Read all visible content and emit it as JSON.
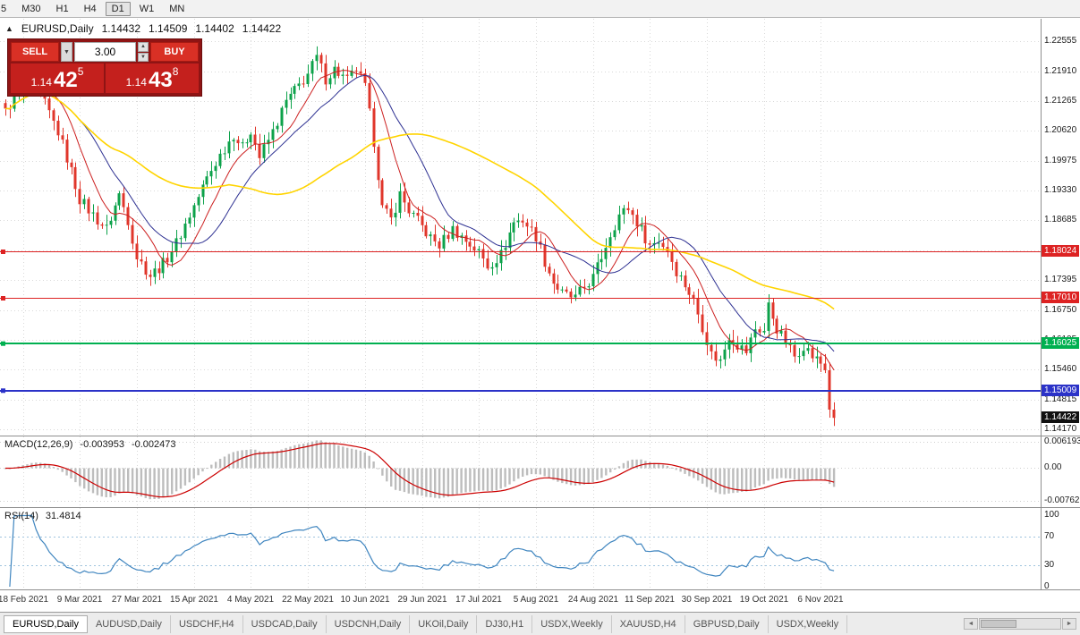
{
  "toolbar": {
    "timeframes": [
      {
        "label": "5"
      },
      {
        "label": "M30"
      },
      {
        "label": "H1"
      },
      {
        "label": "H4"
      },
      {
        "label": "D1"
      },
      {
        "label": "W1"
      },
      {
        "label": "MN"
      }
    ],
    "active_timeframe": "D1"
  },
  "header": {
    "collapse_icon": "▲",
    "title": "EURUSD,Daily",
    "open": "1.14432",
    "high": "1.14509",
    "low": "1.14402",
    "close": "1.14422"
  },
  "one_click": {
    "sell_label": "SELL",
    "buy_label": "BUY",
    "volume": "3.00",
    "volume_dropdown_icon": "▼",
    "spin_up_icon": "▲",
    "spin_down_icon": "▼",
    "sell_price": {
      "prefix": "1.14",
      "big": "42",
      "sup": "5"
    },
    "buy_price": {
      "prefix": "1.14",
      "big": "43",
      "sup": "8"
    },
    "colors": {
      "panel": "#8f1414",
      "button": "#d93025",
      "price_box": "#c4201d"
    }
  },
  "chart_data": {
    "type": "candlestick",
    "title": "EURUSD,Daily",
    "grid_color": "#d9d9d9",
    "price_axis": {
      "visible_min": 1.1404,
      "visible_max": 1.2304,
      "tick_labels": [
        "1.22555",
        "1.21910",
        "1.21265",
        "1.20620",
        "1.19975",
        "1.19330",
        "1.18685",
        "1.18040",
        "1.17395",
        "1.16750",
        "1.16105",
        "1.15460",
        "1.14815",
        "1.14170"
      ]
    },
    "x_axis": {
      "date_labels": [
        "18 Feb 2021",
        "9 Mar 2021",
        "27 Mar 2021",
        "15 Apr 2021",
        "4 May 2021",
        "22 May 2021",
        "10 Jun 2021",
        "29 Jun 2021",
        "17 Jul 2021",
        "5 Aug 2021",
        "24 Aug 2021",
        "11 Sep 2021",
        "30 Sep 2021",
        "19 Oct 2021",
        "6 Nov 2021"
      ],
      "tick_candle_indices": [
        4,
        17,
        30,
        43,
        56,
        69,
        82,
        95,
        108,
        121,
        134,
        147,
        160,
        173,
        186
      ]
    },
    "candles": {
      "count": 190,
      "up_color": "#0ca24a",
      "down_color": "#e0362b",
      "close_waypoints": [
        [
          0,
          1.211
        ],
        [
          3,
          1.214
        ],
        [
          6,
          1.2165
        ],
        [
          9,
          1.212
        ],
        [
          12,
          1.206
        ],
        [
          15,
          1.1975
        ],
        [
          17,
          1.1915
        ],
        [
          20,
          1.188
        ],
        [
          23,
          1.185
        ],
        [
          26,
          1.1925
        ],
        [
          28,
          1.187
        ],
        [
          30,
          1.179
        ],
        [
          33,
          1.175
        ],
        [
          36,
          1.1775
        ],
        [
          39,
          1.182
        ],
        [
          43,
          1.19
        ],
        [
          46,
          1.196
        ],
        [
          49,
          1.201
        ],
        [
          52,
          1.2055
        ],
        [
          54,
          1.2025
        ],
        [
          56,
          1.2065
        ],
        [
          58,
          1.2005
        ],
        [
          61,
          1.206
        ],
        [
          64,
          1.2125
        ],
        [
          67,
          1.216
        ],
        [
          69,
          1.2185
        ],
        [
          71,
          1.222
        ],
        [
          73,
          1.2175
        ],
        [
          75,
          1.2195
        ],
        [
          78,
          1.217
        ],
        [
          80,
          1.2195
        ],
        [
          82,
          1.2155
        ],
        [
          84,
          1.204
        ],
        [
          86,
          1.1895
        ],
        [
          88,
          1.187
        ],
        [
          90,
          1.1925
        ],
        [
          92,
          1.189
        ],
        [
          95,
          1.1855
        ],
        [
          97,
          1.183
        ],
        [
          99,
          1.1815
        ],
        [
          102,
          1.185
        ],
        [
          105,
          1.1825
        ],
        [
          108,
          1.18
        ],
        [
          110,
          1.177
        ],
        [
          113,
          1.1795
        ],
        [
          116,
          1.1865
        ],
        [
          118,
          1.187
        ],
        [
          121,
          1.1835
        ],
        [
          123,
          1.178
        ],
        [
          125,
          1.1735
        ],
        [
          127,
          1.171
        ],
        [
          130,
          1.17
        ],
        [
          132,
          1.1725
        ],
        [
          134,
          1.1745
        ],
        [
          136,
          1.179
        ],
        [
          138,
          1.184
        ],
        [
          140,
          1.188
        ],
        [
          142,
          1.1895
        ],
        [
          144,
          1.1865
        ],
        [
          147,
          1.1815
        ],
        [
          149,
          1.1825
        ],
        [
          151,
          1.1805
        ],
        [
          153,
          1.176
        ],
        [
          155,
          1.173
        ],
        [
          157,
          1.1695
        ],
        [
          159,
          1.164
        ],
        [
          161,
          1.158
        ],
        [
          163,
          1.1565
        ],
        [
          165,
          1.162
        ],
        [
          167,
          1.16
        ],
        [
          169,
          1.1585
        ],
        [
          171,
          1.1635
        ],
        [
          173,
          1.163
        ],
        [
          174,
          1.1685
        ],
        [
          176,
          1.1635
        ],
        [
          178,
          1.1605
        ],
        [
          180,
          1.1575
        ],
        [
          182,
          1.16
        ],
        [
          184,
          1.1575
        ],
        [
          186,
          1.156
        ],
        [
          187,
          1.1545
        ],
        [
          188,
          1.146
        ],
        [
          189,
          1.14422
        ]
      ]
    },
    "moving_averages": [
      {
        "name": "fast",
        "period": 9,
        "color": "#cc1f1f",
        "width": 1
      },
      {
        "name": "medium",
        "period": 18,
        "color": "#2e3192",
        "width": 1
      },
      {
        "name": "slow",
        "period": 52,
        "color": "#ffd400",
        "width": 1.6
      }
    ],
    "horizontal_lines": [
      {
        "price": 1.18024,
        "label": "1.18024",
        "color": "#dd2222",
        "width": 1
      },
      {
        "price": 1.1701,
        "label": "1.17010",
        "color": "#dd2222",
        "width": 1
      },
      {
        "price": 1.16025,
        "label": "1.16025",
        "color": "#00b050",
        "width": 2
      },
      {
        "price": 1.15009,
        "label": "1.15009",
        "color": "#2b32c8",
        "width": 2
      }
    ],
    "current_price": {
      "label": "1.14422",
      "value": 1.14422,
      "bg": "#111111"
    },
    "macd": {
      "name": "MACD(12,26,9)",
      "fast": 12,
      "slow": 26,
      "signal": 9,
      "value_main": "-0.003953",
      "value_signal": "-0.002473",
      "axis_labels": [
        {
          "text": "0.006193",
          "value": 0.006193
        },
        {
          "text": "0.00",
          "value": 0
        },
        {
          "text": "-0.007621",
          "value": -0.007621
        }
      ],
      "scale_max": 0.0075,
      "scale_min": -0.0092,
      "histogram_color": "#bdbdbd",
      "signal_color": "#cc0000"
    },
    "rsi": {
      "name": "RSI(14)",
      "period": 14,
      "value": "31.4814",
      "axis_labels": [
        {
          "text": "100",
          "value": 100
        },
        {
          "text": "70",
          "value": 70
        },
        {
          "text": "30",
          "value": 30
        },
        {
          "text": "0",
          "value": 0
        }
      ],
      "levels": [
        70,
        30
      ],
      "line_color": "#3f85bf",
      "level_color": "#9fc3de"
    }
  },
  "tabs": {
    "active_index": 0,
    "items": [
      "EURUSD,Daily",
      "AUDUSD,Daily",
      "USDCHF,H4",
      "USDCAD,Daily",
      "USDCNH,Daily",
      "UKOil,Daily",
      "DJ30,H1",
      "USDX,Weekly",
      "XAUUSD,H4",
      "GBPUSD,Daily",
      "USDX,Weekly"
    ]
  },
  "tab_scrollbar": {
    "left_icon": "◄",
    "right_icon": "►"
  }
}
